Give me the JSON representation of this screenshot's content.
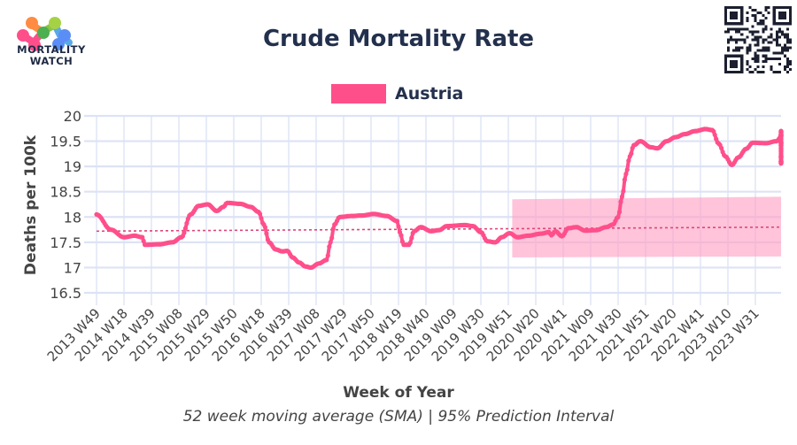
{
  "header": {
    "logo_line1": "MORTALITY",
    "logo_line2": "WATCH",
    "title": "Crude Mortality Rate",
    "qr_icon": "qr-code-icon"
  },
  "legend": {
    "items": [
      {
        "label": "Austria",
        "color": "#ff4f8b"
      }
    ]
  },
  "footer": {
    "subtitle": "52 week moving average (SMA) | 95% Prediction Interval"
  },
  "chart_data": {
    "type": "line",
    "title": "Crude Mortality Rate",
    "xlabel": "Week of Year",
    "ylabel": "Deaths per 100k",
    "ylim": [
      16.5,
      20
    ],
    "yticks": [
      16.5,
      17,
      17.5,
      18,
      18.5,
      19,
      19.5,
      20
    ],
    "ytick_labels": [
      "16.5",
      "17",
      "17.5",
      "18",
      "18.5",
      "19",
      "19.5",
      "20"
    ],
    "xtick_labels": [
      "2013 W49",
      "2014 W18",
      "2014 W39",
      "2015 W08",
      "2015 W29",
      "2015 W50",
      "2016 W18",
      "2016 W39",
      "2017 W08",
      "2017 W29",
      "2017 W50",
      "2018 W19",
      "2018 W40",
      "2019 W09",
      "2019 W30",
      "2019 W51",
      "2020 W20",
      "2020 W41",
      "2021 W09",
      "2021 W30",
      "2021 W51",
      "2022 W20",
      "2022 W41",
      "2023 W10",
      "2023 W31"
    ],
    "xtick_step_weeks": 21,
    "x_range_weeks": [
      0,
      524
    ],
    "grid": true,
    "legend_position": "top-center",
    "series": [
      {
        "name": "Austria",
        "color": "#ff4f8b",
        "style": "line+markers",
        "points_week_value": [
          [
            0,
            18.05
          ],
          [
            11,
            17.75
          ],
          [
            21,
            17.6
          ],
          [
            29,
            17.63
          ],
          [
            35,
            17.6
          ],
          [
            37,
            17.45
          ],
          [
            48,
            17.46
          ],
          [
            58,
            17.5
          ],
          [
            65,
            17.6
          ],
          [
            72,
            18.05
          ],
          [
            78,
            18.22
          ],
          [
            85,
            18.25
          ],
          [
            92,
            18.12
          ],
          [
            97,
            18.2
          ],
          [
            100,
            18.28
          ],
          [
            110,
            18.26
          ],
          [
            118,
            18.2
          ],
          [
            124,
            18.1
          ],
          [
            128,
            17.85
          ],
          [
            132,
            17.5
          ],
          [
            137,
            17.36
          ],
          [
            142,
            17.32
          ],
          [
            146,
            17.33
          ],
          [
            150,
            17.2
          ],
          [
            155,
            17.1
          ],
          [
            160,
            17.02
          ],
          [
            164,
            17.0
          ],
          [
            170,
            17.08
          ],
          [
            176,
            17.15
          ],
          [
            179,
            17.5
          ],
          [
            182,
            17.85
          ],
          [
            186,
            18.0
          ],
          [
            195,
            18.02
          ],
          [
            203,
            18.03
          ],
          [
            212,
            18.06
          ],
          [
            222,
            18.02
          ],
          [
            230,
            17.92
          ],
          [
            232,
            17.7
          ],
          [
            235,
            17.45
          ],
          [
            239,
            17.45
          ],
          [
            243,
            17.72
          ],
          [
            248,
            17.8
          ],
          [
            256,
            17.72
          ],
          [
            262,
            17.74
          ],
          [
            268,
            17.82
          ],
          [
            282,
            17.84
          ],
          [
            288,
            17.82
          ],
          [
            294,
            17.7
          ],
          [
            299,
            17.52
          ],
          [
            305,
            17.5
          ],
          [
            310,
            17.6
          ],
          [
            316,
            17.68
          ],
          [
            322,
            17.6
          ],
          [
            330,
            17.63
          ],
          [
            340,
            17.67
          ],
          [
            346,
            17.7
          ],
          [
            348,
            17.64
          ],
          [
            351,
            17.72
          ],
          [
            356,
            17.62
          ],
          [
            361,
            17.78
          ],
          [
            367,
            17.8
          ],
          [
            374,
            17.73
          ],
          [
            382,
            17.74
          ],
          [
            390,
            17.8
          ],
          [
            395,
            17.85
          ],
          [
            399,
            18.0
          ],
          [
            402,
            18.4
          ],
          [
            405,
            18.85
          ],
          [
            408,
            19.2
          ],
          [
            411,
            19.42
          ],
          [
            416,
            19.5
          ],
          [
            424,
            19.38
          ],
          [
            429,
            19.36
          ],
          [
            436,
            19.5
          ],
          [
            443,
            19.58
          ],
          [
            450,
            19.64
          ],
          [
            458,
            19.7
          ],
          [
            466,
            19.74
          ],
          [
            471,
            19.72
          ],
          [
            476,
            19.45
          ],
          [
            481,
            19.2
          ],
          [
            486,
            19.03
          ],
          [
            491,
            19.18
          ],
          [
            497,
            19.35
          ],
          [
            502,
            19.47
          ],
          [
            512,
            19.46
          ],
          [
            520,
            19.5
          ],
          [
            525,
            19.63
          ],
          [
            531,
            19.6
          ],
          [
            537,
            19.6
          ],
          [
            541,
            19.68
          ],
          [
            544,
            19.55
          ],
          [
            547,
            19.3
          ],
          [
            550,
            19.45
          ],
          [
            553,
            19.7
          ],
          [
            558,
            19.68
          ],
          [
            564,
            19.6
          ],
          [
            568,
            19.47
          ],
          [
            576,
            19.47
          ],
          [
            584,
            19.42
          ],
          [
            590,
            19.3
          ],
          [
            595,
            19.2
          ],
          [
            602,
            19.18
          ],
          [
            607,
            19.08
          ],
          [
            612,
            19.06
          ],
          [
            617,
            19.1
          ],
          [
            627,
            19.1
          ]
        ]
      },
      {
        "name": "Baseline",
        "color": "#e0457b",
        "style": "dotted",
        "points_week_value": [
          [
            0,
            17.72
          ],
          [
            627,
            17.8
          ]
        ]
      }
    ],
    "prediction_interval": {
      "name": "95% Prediction Interval",
      "color": "#ff9fc3",
      "start_week": 318,
      "end_week": 627,
      "upper": [
        18.35,
        18.4
      ],
      "lower": [
        17.2,
        17.22
      ]
    }
  }
}
